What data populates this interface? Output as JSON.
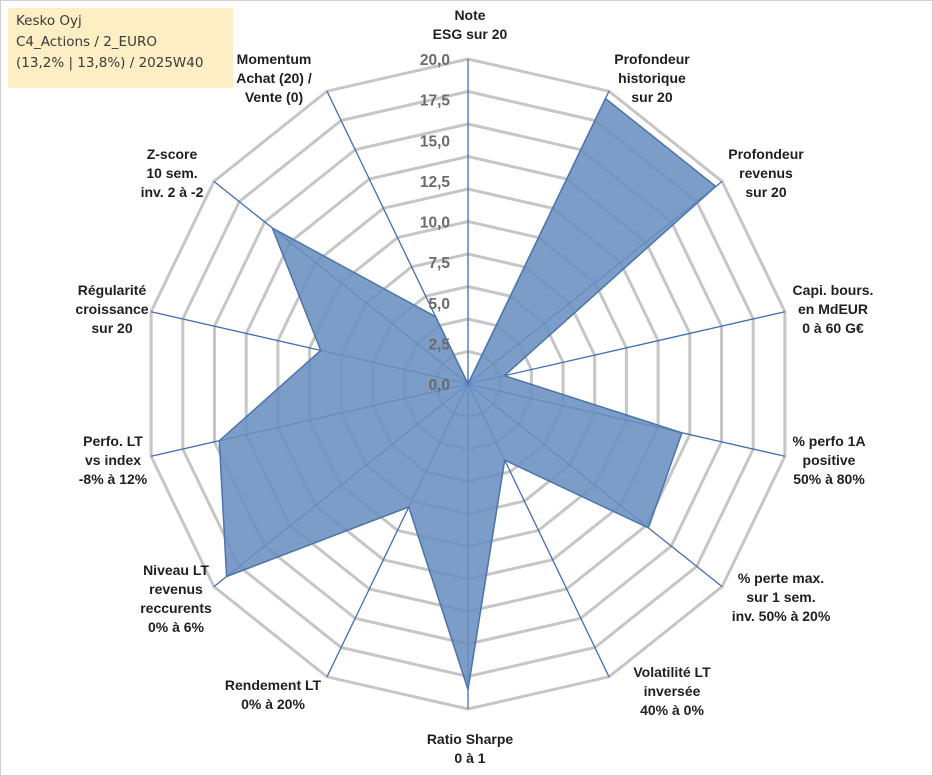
{
  "info": {
    "line1": "Kesko Oyj",
    "line2": "C4_Actions / 2_EURO",
    "line3": "(13,2% | 13,8%) / 2025W40"
  },
  "colors": {
    "fill": "#6a8fc0",
    "stroke": "#4a74ad",
    "grid": "#c6c6c6",
    "spoke": "#3f6fb3",
    "info_bg": "#fdeec4"
  },
  "chart_data": {
    "type": "radar",
    "title": "",
    "rmin": 0,
    "rmax": 20,
    "tick_labels": [
      "0,0",
      "2,5",
      "5,0",
      "7,5",
      "10,0",
      "12,5",
      "15,0",
      "17,5",
      "20,0"
    ],
    "axes": [
      [
        "Note",
        "ESG sur 20"
      ],
      [
        "Profondeur",
        "historique",
        "sur 20"
      ],
      [
        "Profondeur",
        "revenus",
        "sur 20"
      ],
      [
        "Capi. bours.",
        "en MdEUR",
        "0 à 60 G€"
      ],
      [
        "% perfo 1A",
        "positive",
        "50% à 80%"
      ],
      [
        "% perte max.",
        "sur 1 sem.",
        "inv. 50% à 20%"
      ],
      [
        "Volatilité LT",
        "inversée",
        "40% à 0%"
      ],
      [
        "Ratio Sharpe",
        "0 à 1"
      ],
      [
        "Rendement LT",
        "0% à 20%"
      ],
      [
        "Niveau LT",
        "revenus",
        "reccurents",
        "0% à 6%"
      ],
      [
        "Perfo. LT",
        "vs index",
        "-8% à 12%"
      ],
      [
        "Régularité",
        "croissance",
        "sur 20"
      ],
      [
        "Z-score",
        "10 sem.",
        "inv. 2 à -2"
      ],
      [
        "Momentum",
        "Achat (20) /",
        "Vente (0)"
      ]
    ],
    "series": [
      {
        "values": [
          0,
          19.5,
          19.5,
          2.3,
          13.5,
          14.2,
          5.2,
          18.8,
          8.4,
          19.0,
          15.7,
          9.3,
          15.4,
          4.6
        ]
      }
    ]
  }
}
